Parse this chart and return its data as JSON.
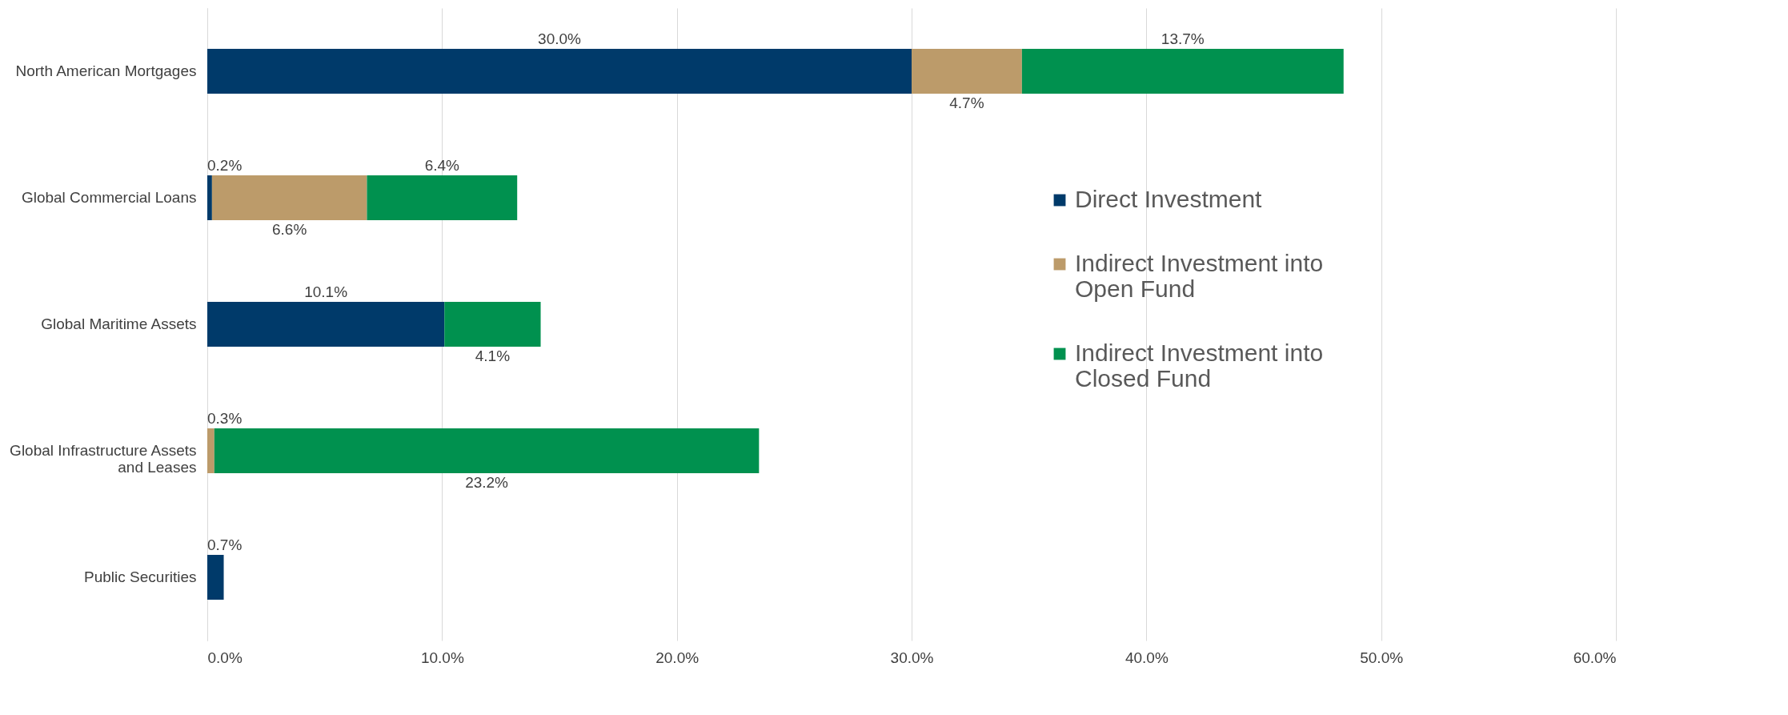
{
  "chart_data": {
    "type": "bar",
    "orientation": "horizontal",
    "stacked": true,
    "categories": [
      "North American Mortgages",
      "Global Commercial Loans",
      "Global Maritime Assets",
      "Global Infrastructure Assets and Leases",
      "Public Securities"
    ],
    "series": [
      {
        "name": "Direct Investment",
        "color": "#003a6a",
        "values": [
          30.0,
          0.2,
          10.1,
          null,
          0.7
        ],
        "value_labels": [
          "30.0%",
          "0.2%",
          "10.1%",
          null,
          "0.7%"
        ]
      },
      {
        "name": "Indirect Investment into Open Fund",
        "color": "#bc9b6a",
        "values": [
          4.7,
          6.6,
          null,
          0.3,
          null
        ],
        "value_labels": [
          "4.7%",
          "6.6%",
          null,
          "0.3%",
          null
        ]
      },
      {
        "name": "Indirect Investment into Closed Fund",
        "color": "#00914f",
        "values": [
          13.7,
          6.4,
          4.1,
          23.2,
          null
        ],
        "value_labels": [
          "13.7%",
          "6.4%",
          "4.1%",
          "23.2%",
          null
        ]
      }
    ],
    "xlim": [
      0,
      60
    ],
    "xticks": [
      {
        "value": 0,
        "label": "0.0%"
      },
      {
        "value": 10,
        "label": "10.0%"
      },
      {
        "value": 20,
        "label": "20.0%"
      },
      {
        "value": 30,
        "label": "30.0%"
      },
      {
        "value": 40,
        "label": "40.0%"
      },
      {
        "value": 50,
        "label": "50.0%"
      },
      {
        "value": 60,
        "label": "60.0%"
      }
    ],
    "grid": "x",
    "legend": "right"
  }
}
